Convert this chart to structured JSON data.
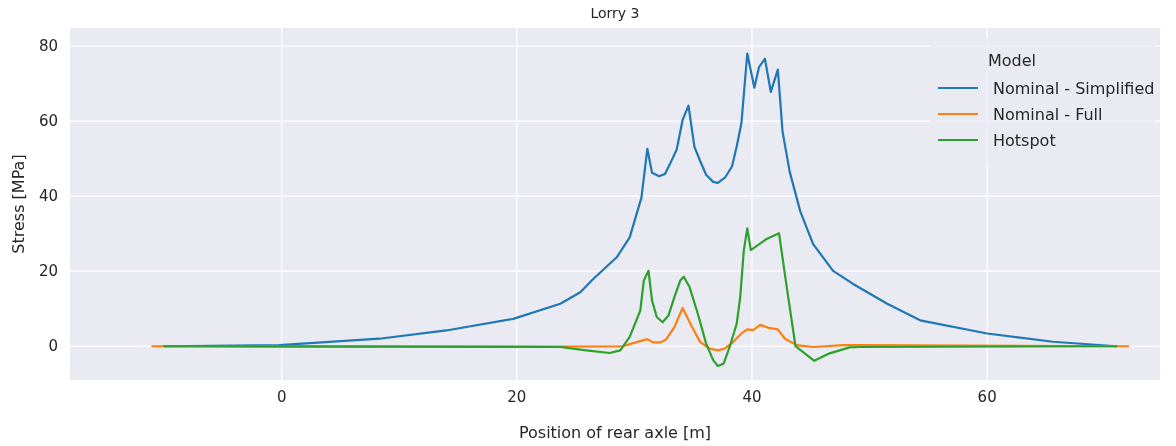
{
  "chart_data": {
    "type": "line",
    "title": "Lorry 3",
    "xlabel": "Position of rear axle [m]",
    "ylabel": "Stress [MPa]",
    "legend_title": "Model",
    "legend": "top right",
    "grid": true,
    "line_style": "solid",
    "marker": "none",
    "xlim": [
      -18,
      74.7
    ],
    "ylim": [
      -9,
      84.8
    ],
    "xticks": [
      0,
      20,
      40,
      60
    ],
    "yticks": [
      0,
      20,
      40,
      60,
      80
    ],
    "series": [
      {
        "name": "Nominal - Simplified",
        "color": "#1f77b4",
        "x": [
          -10,
          -0.2,
          8.3,
          14,
          19.7,
          23.7,
          25.4,
          26.5,
          28.5,
          29.6,
          30.6,
          31.1,
          31.5,
          32.1,
          32.6,
          33.0,
          33.6,
          34.1,
          34.6,
          35.1,
          35.6,
          36.1,
          36.7,
          37.1,
          37.7,
          38.3,
          38.7,
          39.1,
          39.6,
          40.2,
          40.6,
          41.1,
          41.6,
          42.2,
          42.6,
          43.2,
          44.1,
          45.2,
          46.9,
          48.6,
          51.5,
          54.3,
          60,
          65.6,
          71
        ],
        "values": [
          0,
          0.3,
          2.0,
          4.2,
          7.3,
          11.3,
          14.4,
          17.9,
          23.7,
          29.0,
          39.6,
          52.6,
          46.2,
          45.3,
          45.9,
          48.4,
          52.4,
          60.3,
          64.1,
          53.2,
          49.3,
          45.7,
          43.8,
          43.5,
          44.9,
          47.9,
          53.2,
          59.4,
          78.0,
          68.9,
          74.4,
          76.6,
          67.8,
          73.7,
          57.2,
          46.6,
          36.0,
          27.2,
          20.1,
          16.6,
          11.3,
          6.9,
          3.4,
          1.2,
          0
        ]
      },
      {
        "name": "Nominal - Full",
        "color": "#ff7f0e",
        "x": [
          -11,
          23.7,
          29.0,
          30.2,
          31.1,
          31.6,
          32.2,
          32.7,
          33.4,
          34.1,
          34.9,
          35.6,
          36.4,
          37.1,
          37.7,
          38.4,
          39.1,
          39.6,
          40.1,
          40.7,
          41.4,
          42.2,
          42.8,
          43.8,
          45.2,
          47.8,
          49.2,
          72
        ],
        "values": [
          0,
          -0.1,
          0,
          1.1,
          1.9,
          1.0,
          1.0,
          1.8,
          5.1,
          10.2,
          5.1,
          1.1,
          -0.6,
          -1.1,
          -0.6,
          1.1,
          3.4,
          4.5,
          4.3,
          5.7,
          4.9,
          4.5,
          2.0,
          0.3,
          -0.2,
          0.3,
          0.3,
          0
        ]
      },
      {
        "name": "Hotspot",
        "color": "#2ca02c",
        "x": [
          -10,
          23.7,
          25.9,
          27.9,
          28.8,
          29.6,
          30.5,
          30.8,
          31.2,
          31.5,
          31.9,
          32.4,
          32.9,
          33.4,
          33.9,
          34.2,
          34.7,
          35.4,
          36.1,
          36.7,
          37.1,
          37.6,
          38.1,
          38.7,
          39.0,
          39.3,
          39.6,
          39.9,
          41.2,
          42.3,
          43.0,
          43.7,
          45.3,
          46.6,
          48.3,
          49.2,
          71
        ],
        "values": [
          0,
          -0.2,
          -1.1,
          -1.8,
          -1.1,
          2.5,
          9.5,
          17.5,
          20.1,
          12.2,
          7.8,
          6.4,
          8.2,
          13.1,
          17.5,
          18.5,
          15.7,
          8.6,
          0.7,
          -3.7,
          -5.3,
          -4.6,
          -0.2,
          6.0,
          13.1,
          25.4,
          31.4,
          25.6,
          28.5,
          30.1,
          14.8,
          0,
          -3.9,
          -1.9,
          -0.3,
          -0.2,
          0
        ]
      }
    ]
  }
}
